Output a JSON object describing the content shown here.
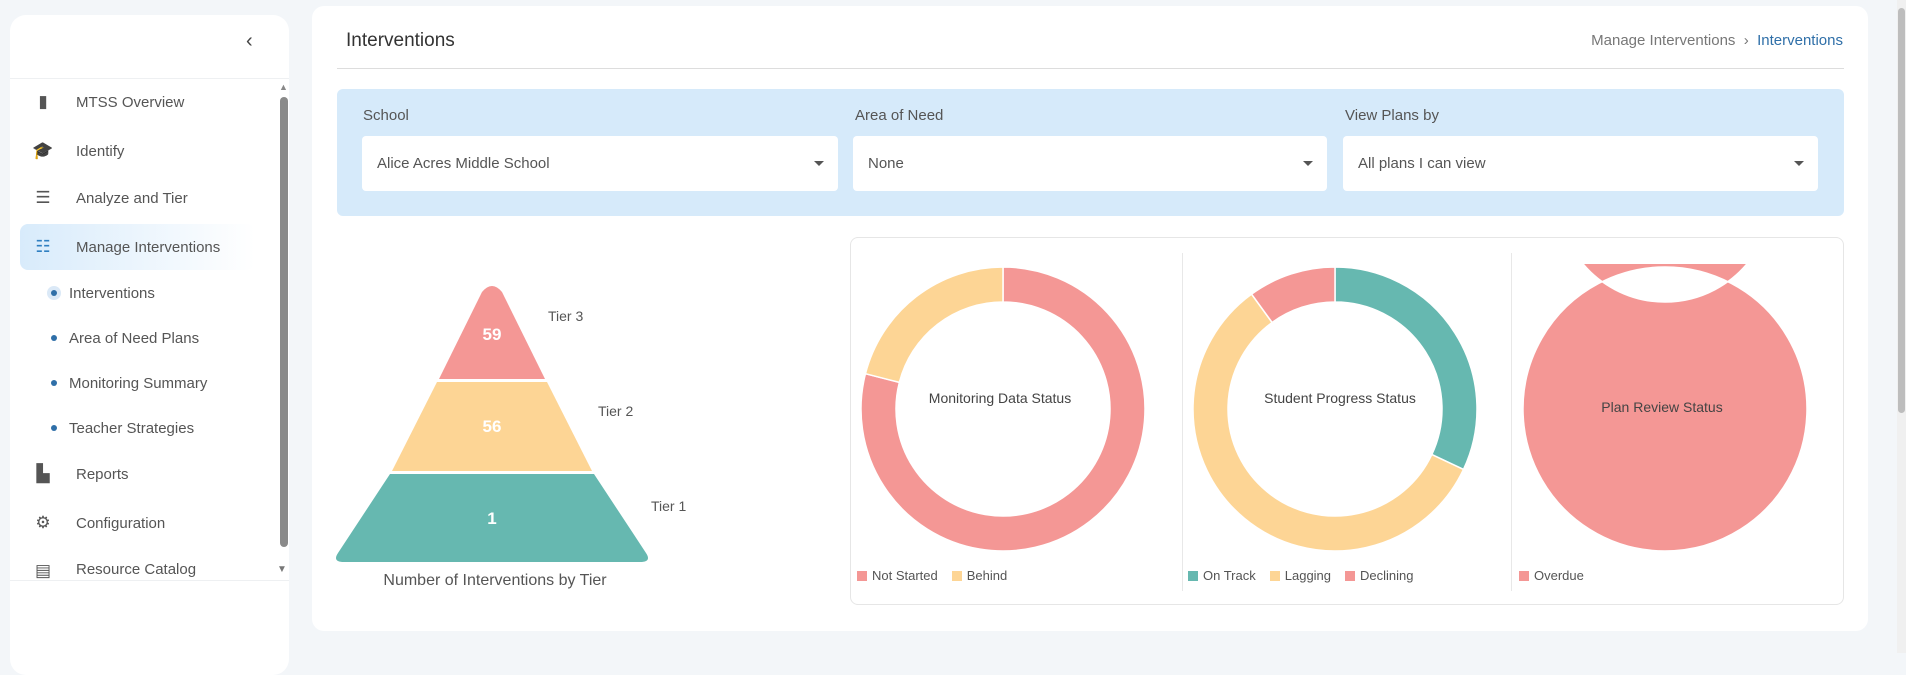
{
  "sidebar": {
    "items": [
      {
        "label": "MTSS Overview",
        "icon": "bar-chart-icon"
      },
      {
        "label": "Identify",
        "icon": "graduation-cap-icon"
      },
      {
        "label": "Analyze and Tier",
        "icon": "list-search-icon"
      },
      {
        "label": "Manage Interventions",
        "icon": "sliders-icon"
      },
      {
        "label": "Reports",
        "icon": "report-icon"
      },
      {
        "label": "Configuration",
        "icon": "gear-icon"
      },
      {
        "label": "Resource Catalog",
        "icon": "document-icon"
      }
    ],
    "subitems": [
      "Interventions",
      "Area of Need Plans",
      "Monitoring Summary",
      "Teacher Strategies"
    ]
  },
  "header": {
    "title": "Interventions",
    "breadcrumb": [
      "Manage Interventions",
      "Interventions"
    ],
    "sep": "›"
  },
  "filters": [
    {
      "label": "School",
      "value": "Alice Acres Middle School"
    },
    {
      "label": "Area of Need",
      "value": "None"
    },
    {
      "label": "View Plans by",
      "value": "All plans I can view"
    }
  ],
  "colors": {
    "red": "#f49795",
    "yellow": "#fdd595",
    "teal": "#66b8b0",
    "accent": "#2f6fa8"
  },
  "chart_data": [
    {
      "type": "pyramid",
      "title": "Number of Interventions by Tier",
      "categories": [
        "Tier 3",
        "Tier 2",
        "Tier 1"
      ],
      "values": [
        59,
        56,
        1
      ],
      "value_labels": [
        "59",
        "56",
        "1"
      ]
    },
    {
      "type": "pie",
      "title": "Monitoring Data Status",
      "labels": [
        "Not Started",
        "Behind"
      ],
      "values": [
        79,
        21
      ]
    },
    {
      "type": "pie",
      "title": "Student Progress Status",
      "labels": [
        "On Track",
        "Lagging",
        "Declining"
      ],
      "values": [
        32,
        58,
        10
      ]
    },
    {
      "type": "pie",
      "title": "Plan Review Status",
      "labels": [
        "Overdue"
      ],
      "values": [
        100
      ]
    }
  ]
}
